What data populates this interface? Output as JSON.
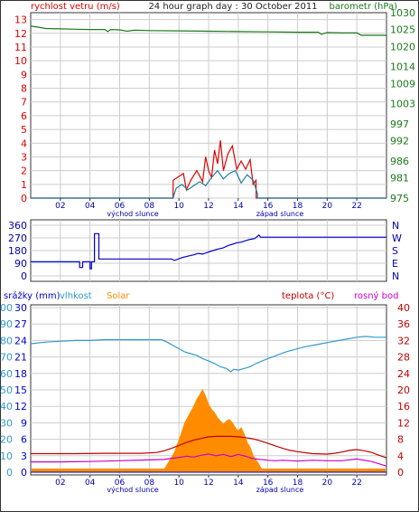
{
  "header": {
    "left_label": "rychlost vetru (m/s)",
    "title": "24 hour graph day : 30 October 2011",
    "right_label": "barometr (hPa)"
  },
  "colors": {
    "wind": "#e00000",
    "wind_avg": "#1e7fa0",
    "pressure": "#1a7a1a",
    "direction": "#0000cc",
    "humidity": "#3399cc",
    "solar": "#ff8c00",
    "temperature": "#c00000",
    "dewpoint": "#cc00cc",
    "rain": "#0000cc",
    "grid": "#cccccc",
    "axis_left": "#e00000",
    "axis_right": "#1a7a1a"
  },
  "time_axis": {
    "ticks": [
      "02",
      "04",
      "06",
      "08",
      "10",
      "12",
      "14",
      "16",
      "18",
      "20",
      "22"
    ],
    "sunrise_label": "východ slunce",
    "sunset_label": "západ slunce"
  },
  "chart_data": [
    {
      "type": "line",
      "panel": "wind_pressure",
      "left_axis": {
        "label": "rychlost vetru (m/s)",
        "ticks": [
          "0",
          "1",
          "2",
          "3",
          "4",
          "5",
          "6",
          "7",
          "8",
          "9",
          "10",
          "11",
          "12",
          "13"
        ],
        "range": [
          0,
          13.5
        ]
      },
      "right_axis": {
        "label": "barometr (hPa)",
        "ticks": [
          "975",
          "981",
          "986",
          "992",
          "997",
          "1003",
          "1009",
          "1014",
          "1020",
          "1025",
          "1030"
        ],
        "range": [
          975,
          1030
        ]
      },
      "series": [
        {
          "key": "wind_gust",
          "axis": "left",
          "x": [
            0,
            9.6,
            9.61,
            10.3,
            10.5,
            10.8,
            11.2,
            11.6,
            11.8,
            12.0,
            12.2,
            12.4,
            12.6,
            12.8,
            13.0,
            13.3,
            13.6,
            13.9,
            14.2,
            14.5,
            14.8,
            15.0,
            15.2,
            15.21,
            24
          ],
          "values": [
            0,
            0,
            1.3,
            1.8,
            0.6,
            1.3,
            2.0,
            1.2,
            3.0,
            2.0,
            1.5,
            3.5,
            2.5,
            4.2,
            2.0,
            3.2,
            3.8,
            2.1,
            2.7,
            2.1,
            2.8,
            1.0,
            1.3,
            0,
            0
          ]
        },
        {
          "key": "wind_avg",
          "axis": "left",
          "x": [
            0,
            9.6,
            9.8,
            10.2,
            10.6,
            11.0,
            11.4,
            11.8,
            12.2,
            12.6,
            13.0,
            13.4,
            13.8,
            14.2,
            14.6,
            15.0,
            15.3,
            15.31,
            24
          ],
          "values": [
            0,
            0,
            0.7,
            1.0,
            0.6,
            0.9,
            1.2,
            0.9,
            1.5,
            2.0,
            1.4,
            1.8,
            2.0,
            1.1,
            1.7,
            1.3,
            0.3,
            0,
            0
          ]
        },
        {
          "key": "pressure",
          "axis": "right",
          "x": [
            0,
            0.5,
            1.0,
            2.0,
            3.0,
            4.0,
            5.0,
            5.2,
            5.4,
            6.0,
            6.5,
            7.0,
            8.0,
            10.0,
            12.0,
            14.0,
            16.0,
            18.0,
            19.4,
            19.6,
            20.0,
            21.0,
            22.0,
            22.3,
            24.0
          ],
          "values": [
            1026,
            1025.7,
            1025.3,
            1025.2,
            1025.1,
            1025.0,
            1025.0,
            1024.4,
            1025.0,
            1024.9,
            1024.5,
            1024.8,
            1024.7,
            1024.6,
            1024.5,
            1024.4,
            1024.3,
            1024.2,
            1024.2,
            1023.6,
            1024.1,
            1024.0,
            1024.0,
            1023.3,
            1023.3
          ]
        }
      ]
    },
    {
      "type": "line",
      "panel": "wind_direction",
      "left_axis": {
        "ticks": [
          "0",
          "90",
          "180",
          "270",
          "360"
        ],
        "range": [
          0,
          360
        ]
      },
      "right_axis": {
        "ticks": [
          "N",
          "E",
          "S",
          "W",
          "N"
        ]
      },
      "series": [
        {
          "key": "direction",
          "x": [
            0,
            3.3,
            3.3,
            3.5,
            3.5,
            4.0,
            4.0,
            4.1,
            4.1,
            4.3,
            4.3,
            4.6,
            4.6,
            4.9,
            4.9,
            9.5,
            9.7,
            10.2,
            10.6,
            11.0,
            11.3,
            11.6,
            12.0,
            12.3,
            12.6,
            13.0,
            13.3,
            13.6,
            13.9,
            14.2,
            14.5,
            14.8,
            15.1,
            15.4,
            15.5,
            16.0,
            24
          ],
          "values": [
            100,
            100,
            60,
            60,
            100,
            100,
            50,
            50,
            100,
            100,
            300,
            300,
            120,
            120,
            120,
            120,
            110,
            130,
            140,
            150,
            160,
            155,
            170,
            180,
            190,
            200,
            215,
            225,
            235,
            240,
            250,
            260,
            265,
            290,
            275,
            275,
            275
          ]
        }
      ]
    },
    {
      "type": "area",
      "panel": "rain_humidity_solar_temperature",
      "labels": {
        "rain": "srážky (mm)",
        "humidity": "vlhkost",
        "solar": "Solar",
        "temperature": "teplota (°C)",
        "dewpoint": "rosný bod"
      },
      "axes": {
        "rain": [
          "0",
          "3",
          "6",
          "9",
          "12",
          "15",
          "18",
          "21",
          "24",
          "27",
          "30"
        ],
        "humidity": [
          "0",
          "10",
          "20",
          "30",
          "40",
          "50",
          "60",
          "70",
          "80",
          "90",
          "100"
        ],
        "temperature": [
          "0",
          "4",
          "8",
          "12",
          "16",
          "20",
          "24",
          "28",
          "32",
          "36",
          "40"
        ]
      },
      "series": [
        {
          "key": "humidity",
          "x": [
            0,
            1.0,
            2.0,
            3.0,
            4.0,
            5.0,
            6.0,
            7.0,
            8.0,
            8.8,
            9.2,
            9.6,
            10.0,
            10.4,
            10.8,
            11.2,
            11.6,
            12.0,
            12.4,
            12.8,
            13.2,
            13.5,
            13.7,
            14.0,
            14.4,
            14.8,
            15.2,
            15.6,
            16.0,
            16.6,
            17.2,
            17.8,
            18.4,
            19.0,
            19.6,
            20.2,
            20.8,
            21.4,
            22.0,
            22.6,
            23.2,
            24.0
          ],
          "values": [
            78,
            79,
            79.5,
            80,
            80,
            80.5,
            80.5,
            80.5,
            80.5,
            80.5,
            79,
            77,
            75,
            73,
            72,
            71,
            69,
            67.5,
            66,
            64,
            63,
            61,
            62.5,
            62,
            63,
            64,
            66,
            67.5,
            69,
            71,
            73,
            74.5,
            76,
            77,
            78,
            79,
            80,
            81,
            82,
            82.5,
            82,
            82
          ]
        },
        {
          "key": "temperature",
          "x": [
            0,
            3.0,
            5.0,
            7.5,
            8.5,
            9.0,
            9.5,
            10.0,
            10.5,
            11.0,
            11.5,
            12.0,
            12.5,
            13.0,
            13.5,
            14.0,
            14.5,
            15.0,
            15.5,
            16.0,
            16.5,
            17.0,
            17.5,
            18.0,
            19.0,
            20.0,
            20.5,
            21.0,
            21.5,
            22.0,
            22.5,
            23.0,
            23.5,
            24.0
          ],
          "values": [
            4.5,
            4.5,
            4.6,
            4.6,
            4.8,
            5.2,
            5.8,
            6.5,
            7.2,
            7.8,
            8.2,
            8.6,
            8.7,
            8.7,
            8.7,
            8.6,
            8.4,
            8.1,
            7.6,
            7.0,
            6.4,
            5.8,
            5.3,
            5.0,
            4.5,
            4.4,
            4.6,
            4.9,
            5.3,
            5.5,
            5.2,
            4.8,
            4.1,
            3.5
          ]
        },
        {
          "key": "dewpoint",
          "x": [
            0,
            2.0,
            4.0,
            6.0,
            8.0,
            9.0,
            10.0,
            10.5,
            11.0,
            11.5,
            12.0,
            12.5,
            13.0,
            13.5,
            14.0,
            14.5,
            15.0,
            16.0,
            16.5,
            17.0,
            18.0,
            19.0,
            20.0,
            21.0,
            22.0,
            23.0,
            24.0
          ],
          "values": [
            2.5,
            2.5,
            2.6,
            2.8,
            3.0,
            3.1,
            3.6,
            3.9,
            3.7,
            4.1,
            4.4,
            4.0,
            4.3,
            3.8,
            4.3,
            3.9,
            3.3,
            2.9,
            2.8,
            2.9,
            2.7,
            2.9,
            2.8,
            2.8,
            3.2,
            2.6,
            1.5
          ]
        },
        {
          "key": "solar",
          "x": [
            0,
            8.9,
            9.3,
            9.7,
            10.1,
            10.4,
            10.7,
            11.0,
            11.2,
            11.4,
            11.6,
            11.8,
            12.0,
            12.2,
            12.4,
            12.6,
            12.8,
            13.0,
            13.2,
            13.4,
            13.6,
            13.8,
            14.0,
            14.2,
            14.4,
            14.6,
            14.8,
            15.0,
            15.3,
            15.5,
            15.7,
            24
          ],
          "values": [
            0,
            0,
            6,
            12,
            22,
            30,
            35,
            40,
            44,
            47,
            50,
            46,
            41,
            38,
            36,
            33,
            31,
            29,
            31,
            32,
            30,
            27,
            25,
            27,
            23,
            18,
            15,
            10,
            6,
            3,
            0,
            0
          ]
        },
        {
          "key": "rain",
          "x": [
            0,
            24
          ],
          "values": [
            0,
            0
          ]
        }
      ]
    }
  ]
}
